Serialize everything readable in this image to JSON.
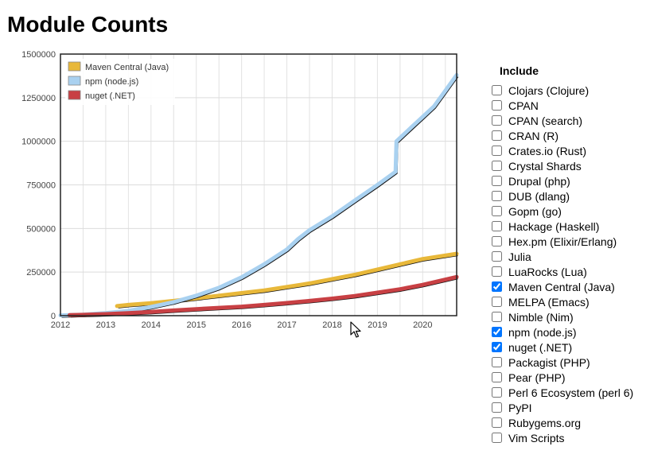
{
  "page": {
    "title": "Module Counts"
  },
  "include": {
    "title": "Include",
    "items": [
      {
        "label": "Clojars (Clojure)",
        "checked": false
      },
      {
        "label": "CPAN",
        "checked": false
      },
      {
        "label": "CPAN (search)",
        "checked": false
      },
      {
        "label": "CRAN (R)",
        "checked": false
      },
      {
        "label": "Crates.io (Rust)",
        "checked": false
      },
      {
        "label": "Crystal Shards",
        "checked": false
      },
      {
        "label": "Drupal (php)",
        "checked": false
      },
      {
        "label": "DUB (dlang)",
        "checked": false
      },
      {
        "label": "Gopm (go)",
        "checked": false
      },
      {
        "label": "Hackage (Haskell)",
        "checked": false
      },
      {
        "label": "Hex.pm (Elixir/Erlang)",
        "checked": false
      },
      {
        "label": "Julia",
        "checked": false
      },
      {
        "label": "LuaRocks (Lua)",
        "checked": false
      },
      {
        "label": "Maven Central (Java)",
        "checked": true
      },
      {
        "label": "MELPA (Emacs)",
        "checked": false
      },
      {
        "label": "Nimble (Nim)",
        "checked": false
      },
      {
        "label": "npm (node.js)",
        "checked": true
      },
      {
        "label": "nuget (.NET)",
        "checked": true
      },
      {
        "label": "Packagist (PHP)",
        "checked": false
      },
      {
        "label": "Pear (PHP)",
        "checked": false
      },
      {
        "label": "Perl 6 Ecosystem (perl 6)",
        "checked": false
      },
      {
        "label": "PyPI",
        "checked": false
      },
      {
        "label": "Rubygems.org",
        "checked": false
      },
      {
        "label": "Vim Scripts",
        "checked": false
      }
    ]
  },
  "chart_data": {
    "type": "line",
    "title": "",
    "xlabel": "",
    "ylabel": "",
    "xlim": [
      2012,
      2020.75
    ],
    "ylim": [
      0,
      1500000
    ],
    "x_ticks": [
      "2012",
      "2013",
      "2014",
      "2015",
      "2016",
      "2017",
      "2018",
      "2019",
      "2020"
    ],
    "y_ticks": [
      "0",
      "250000",
      "500000",
      "750000",
      "1000000",
      "1250000",
      "1500000"
    ],
    "grid": true,
    "legend_position": "top-left",
    "series": [
      {
        "name": "Maven Central (Java)",
        "color": "#e8b83a",
        "points": [
          [
            2013.25,
            55000
          ],
          [
            2013.5,
            62000
          ],
          [
            2014,
            72000
          ],
          [
            2014.5,
            85000
          ],
          [
            2015,
            100000
          ],
          [
            2015.5,
            115000
          ],
          [
            2016,
            130000
          ],
          [
            2016.5,
            145000
          ],
          [
            2017,
            165000
          ],
          [
            2017.5,
            185000
          ],
          [
            2018,
            210000
          ],
          [
            2018.5,
            235000
          ],
          [
            2019,
            265000
          ],
          [
            2019.5,
            295000
          ],
          [
            2020,
            325000
          ],
          [
            2020.75,
            355000
          ]
        ]
      },
      {
        "name": "npm (node.js)",
        "color": "#a9d1f0",
        "points": [
          [
            2012,
            2000
          ],
          [
            2012.5,
            6000
          ],
          [
            2013,
            15000
          ],
          [
            2013.5,
            28000
          ],
          [
            2014,
            50000
          ],
          [
            2014.5,
            78000
          ],
          [
            2015,
            115000
          ],
          [
            2015.5,
            160000
          ],
          [
            2016,
            220000
          ],
          [
            2016.5,
            295000
          ],
          [
            2017,
            380000
          ],
          [
            2017.25,
            440000
          ],
          [
            2017.5,
            490000
          ],
          [
            2018,
            570000
          ],
          [
            2018.5,
            660000
          ],
          [
            2019,
            750000
          ],
          [
            2019.4,
            825000
          ],
          [
            2019.42,
            1000000
          ],
          [
            2019.75,
            1080000
          ],
          [
            2020,
            1140000
          ],
          [
            2020.25,
            1200000
          ],
          [
            2020.5,
            1290000
          ],
          [
            2020.75,
            1380000
          ]
        ]
      },
      {
        "name": "nuget (.NET)",
        "color": "#c84044",
        "points": [
          [
            2012.2,
            3000
          ],
          [
            2012.5,
            5000
          ],
          [
            2013,
            9000
          ],
          [
            2013.5,
            15000
          ],
          [
            2014,
            22000
          ],
          [
            2014.5,
            30000
          ],
          [
            2015,
            38000
          ],
          [
            2015.5,
            45000
          ],
          [
            2016,
            52000
          ],
          [
            2016.5,
            62000
          ],
          [
            2017,
            73000
          ],
          [
            2017.5,
            85000
          ],
          [
            2018,
            98000
          ],
          [
            2018.5,
            113000
          ],
          [
            2019,
            132000
          ],
          [
            2019.5,
            152000
          ],
          [
            2020,
            177000
          ],
          [
            2020.75,
            222000
          ]
        ]
      }
    ]
  }
}
